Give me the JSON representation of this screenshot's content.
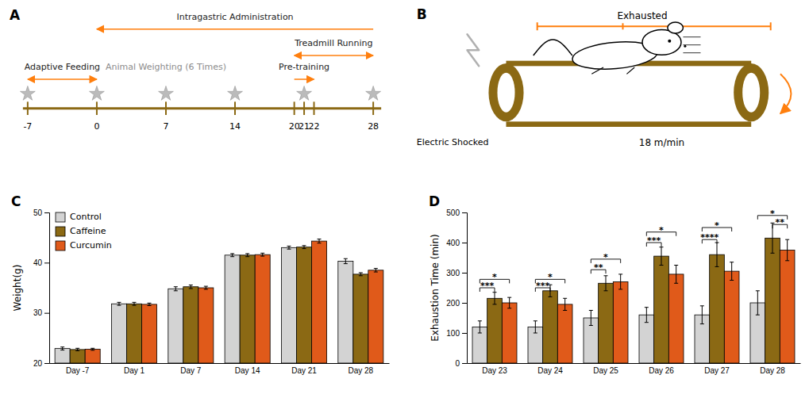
{
  "chart_data": [
    {
      "type": "timeline",
      "title": "A",
      "xlim": [
        -9,
        30
      ],
      "xticks": [
        -7,
        0,
        7,
        14,
        20,
        21,
        22,
        28
      ],
      "x": [
        -7,
        0,
        7,
        14,
        21,
        28
      ],
      "color": "#8B6914",
      "annotations": [
        "Intragastric Administration",
        "Treadmill Running",
        "Pre-training",
        "Adaptive Feeding",
        "Animal Weighting (6 Times)"
      ]
    },
    {
      "type": "diagram",
      "title": "B",
      "color": "#8B6914",
      "annotations": [
        "Exhausted",
        "Electric Shocked",
        "18 m/min"
      ]
    },
    {
      "type": "bar",
      "title": "C",
      "categories": [
        "Day -7",
        "Day 1",
        "Day 7",
        "Day 14",
        "Day 21",
        "Day 28"
      ],
      "series": [
        {
          "name": "Control",
          "color": "#D3D3D3",
          "values": [
            22.9,
            31.8,
            34.8,
            41.5,
            43.0,
            40.3
          ],
          "errors": [
            0.3,
            0.3,
            0.4,
            0.3,
            0.3,
            0.5
          ]
        },
        {
          "name": "Caffeine",
          "color": "#8B6914",
          "values": [
            22.7,
            31.8,
            35.2,
            41.5,
            43.1,
            37.7
          ],
          "errors": [
            0.25,
            0.3,
            0.35,
            0.3,
            0.3,
            0.3
          ]
        },
        {
          "name": "Curcumin",
          "color": "#E05A1A",
          "values": [
            22.75,
            31.7,
            35.0,
            41.6,
            44.3,
            38.5
          ],
          "errors": [
            0.2,
            0.25,
            0.3,
            0.3,
            0.4,
            0.35
          ]
        }
      ],
      "ylabel": "Weight(g)",
      "ylim": [
        20,
        50
      ],
      "yticks": [
        20,
        30,
        40,
        50
      ],
      "legend": "upper left"
    },
    {
      "type": "bar",
      "title": "D",
      "categories": [
        "Day 23",
        "Day 24",
        "Day 25",
        "Day 26",
        "Day 27",
        "Day 28"
      ],
      "series": [
        {
          "name": "Control",
          "color": "#D3D3D3",
          "values": [
            120,
            120,
            150,
            160,
            160,
            200
          ],
          "errors": [
            20,
            20,
            25,
            25,
            30,
            40
          ]
        },
        {
          "name": "Caffeine",
          "color": "#8B6914",
          "values": [
            215,
            240,
            265,
            355,
            360,
            415
          ],
          "errors": [
            20,
            20,
            25,
            30,
            40,
            50
          ]
        },
        {
          "name": "Curcumin",
          "color": "#E05A1A",
          "values": [
            200,
            195,
            270,
            295,
            305,
            375
          ],
          "errors": [
            18,
            20,
            25,
            30,
            30,
            35
          ]
        }
      ],
      "ylabel": "Exhaustion Time (min)",
      "ylim": [
        0,
        500
      ],
      "yticks": [
        0,
        100,
        200,
        300,
        400,
        500
      ],
      "annotations": [
        {
          "text": "***",
          "category": "Day 23",
          "from": "Control",
          "to": "Caffeine",
          "y": 250
        },
        {
          "text": "*",
          "category": "Day 23",
          "from": "Control",
          "to": "Curcumin",
          "y": 278
        },
        {
          "text": "***",
          "category": "Day 24",
          "from": "Control",
          "to": "Caffeine",
          "y": 250
        },
        {
          "text": "*",
          "category": "Day 24",
          "from": "Control",
          "to": "Curcumin",
          "y": 278
        },
        {
          "text": "**",
          "category": "Day 25",
          "from": "Control",
          "to": "Caffeine",
          "y": 310
        },
        {
          "text": "*",
          "category": "Day 25",
          "from": "Control",
          "to": "Curcumin",
          "y": 345
        },
        {
          "text": "***",
          "category": "Day 26",
          "from": "Control",
          "to": "Caffeine",
          "y": 400
        },
        {
          "text": "*",
          "category": "Day 26",
          "from": "Control",
          "to": "Curcumin",
          "y": 435
        },
        {
          "text": "****",
          "category": "Day 27",
          "from": "Control",
          "to": "Caffeine",
          "y": 410
        },
        {
          "text": "*",
          "category": "Day 27",
          "from": "Control",
          "to": "Curcumin",
          "y": 450
        },
        {
          "text": "**",
          "category": "Day 28",
          "from": "Caffeine",
          "to": "Curcumin",
          "y": 460
        },
        {
          "text": "*",
          "category": "Day 28",
          "from": "Control",
          "to": "Curcumin",
          "y": 490
        }
      ]
    }
  ]
}
